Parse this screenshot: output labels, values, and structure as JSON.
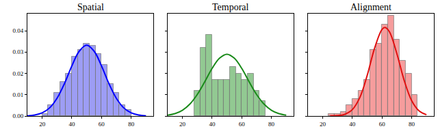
{
  "chart_data": [
    {
      "type": "histogram",
      "title": "Spatial",
      "xlim": [
        10,
        95
      ],
      "xticks": [
        20,
        40,
        60,
        80
      ],
      "ylim": [
        0,
        0.048
      ],
      "yticks": [
        {
          "value": 0,
          "label": "0.00"
        },
        0.01,
        0.02,
        0.03,
        0.04
      ],
      "tick_labels": true,
      "series": [
        {
          "type": "bar",
          "color": "#8c8cf2",
          "bins": [
            20,
            24,
            28,
            32,
            36,
            40,
            44,
            48,
            52,
            56,
            60,
            64,
            68,
            72,
            76,
            80
          ],
          "values": [
            0.001,
            0.005,
            0.011,
            0.016,
            0.02,
            0.028,
            0.031,
            0.034,
            0.033,
            0.029,
            0.024,
            0.015,
            0.011,
            0.005,
            0.003
          ]
        },
        {
          "type": "line",
          "color": "#0000ff",
          "x": [
            10,
            15,
            20,
            25,
            30,
            35,
            40,
            45,
            50,
            55,
            60,
            65,
            70,
            75,
            80,
            85,
            90
          ],
          "values": [
            0.0001,
            0.0005,
            0.0015,
            0.0038,
            0.0083,
            0.0152,
            0.0235,
            0.0304,
            0.0332,
            0.0304,
            0.0235,
            0.0152,
            0.0083,
            0.0038,
            0.0015,
            0.0005,
            0.0001
          ]
        }
      ]
    },
    {
      "type": "histogram",
      "title": "Temporal",
      "xlim": [
        10,
        95
      ],
      "xticks": [
        20,
        40,
        60,
        80
      ],
      "ylim": [
        0,
        0.048
      ],
      "yticks": [
        {
          "value": 0,
          "label": "0.00"
        },
        0.01,
        0.02,
        0.03,
        0.04
      ],
      "tick_labels": "x",
      "series": [
        {
          "type": "bar",
          "color": "#80c080",
          "bins": [
            28,
            32,
            36,
            40,
            44,
            48,
            52,
            56,
            60,
            64,
            68,
            72,
            76
          ],
          "values": [
            0.012,
            0.032,
            0.038,
            0.017,
            0.017,
            0.017,
            0.023,
            0.02,
            0.017,
            0.02,
            0.012,
            0.007
          ]
        },
        {
          "type": "line",
          "color": "#1a8a1a",
          "x": [
            10,
            15,
            20,
            25,
            30,
            35,
            40,
            45,
            50,
            55,
            60,
            65,
            70,
            75,
            80,
            85,
            90
          ],
          "values": [
            0.0004,
            0.0011,
            0.0027,
            0.0056,
            0.0101,
            0.016,
            0.0223,
            0.0271,
            0.029,
            0.0271,
            0.0223,
            0.016,
            0.0101,
            0.0056,
            0.0027,
            0.0011,
            0.0004
          ]
        }
      ]
    },
    {
      "type": "histogram",
      "title": "Alignment",
      "xlim": [
        10,
        95
      ],
      "xticks": [
        20,
        40,
        60,
        80
      ],
      "ylim": [
        0,
        0.048
      ],
      "yticks": [
        {
          "value": 0,
          "label": "0.00"
        },
        0.01,
        0.02,
        0.03,
        0.04
      ],
      "tick_labels": "x",
      "series": [
        {
          "type": "bar",
          "color": "#f58c8c",
          "bins": [
            24,
            28,
            32,
            36,
            40,
            44,
            48,
            52,
            56,
            60,
            64,
            68,
            72,
            76,
            80,
            84
          ],
          "values": [
            0.001,
            0.001,
            0.002,
            0.005,
            0.008,
            0.012,
            0.017,
            0.031,
            0.034,
            0.043,
            0.047,
            0.036,
            0.026,
            0.02,
            0.01
          ]
        },
        {
          "type": "line",
          "color": "#e01010",
          "x": [
            25,
            30,
            35,
            40,
            45,
            50,
            55,
            60,
            62,
            65,
            70,
            75,
            80,
            85,
            90
          ],
          "values": [
            2e-05,
            0.0002,
            0.0008,
            0.003,
            0.0086,
            0.019,
            0.0318,
            0.0406,
            0.0415,
            0.0395,
            0.0293,
            0.0166,
            0.0072,
            0.0024,
            0.0006
          ]
        }
      ]
    }
  ]
}
